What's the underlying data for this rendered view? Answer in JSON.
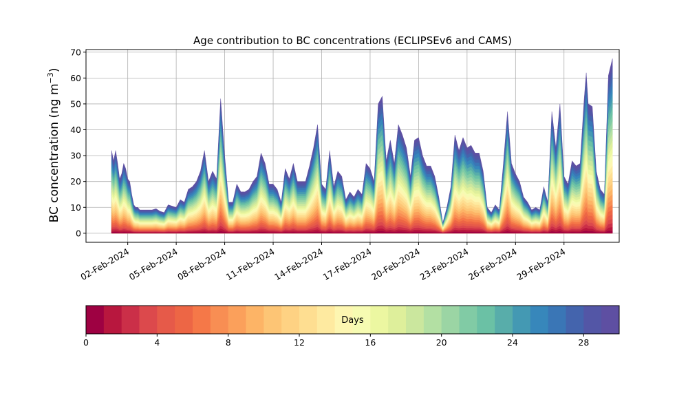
{
  "chart_data": {
    "type": "area",
    "title": "Age contribution to BC concentrations (ECLIPSEv6 and CAMS)",
    "ylabel": "BC concentration (ng m",
    "ylabel_sup": "−3",
    "ylabel_end": ")",
    "xlabel": "",
    "ylim": [
      -3.5,
      71
    ],
    "y_ticks": [
      0,
      10,
      20,
      30,
      40,
      50,
      60,
      70
    ],
    "x_ticks": [
      {
        "date": "2024-02-02",
        "label": "02-Feb-2024"
      },
      {
        "date": "2024-02-05",
        "label": "05-Feb-2024"
      },
      {
        "date": "2024-02-08",
        "label": "08-Feb-2024"
      },
      {
        "date": "2024-02-11",
        "label": "11-Feb-2024"
      },
      {
        "date": "2024-02-14",
        "label": "14-Feb-2024"
      },
      {
        "date": "2024-02-17",
        "label": "17-Feb-2024"
      },
      {
        "date": "2024-02-20",
        "label": "20-Feb-2024"
      },
      {
        "date": "2024-02-23",
        "label": "23-Feb-2024"
      },
      {
        "date": "2024-02-26",
        "label": "26-Feb-2024"
      },
      {
        "date": "2024-02-29",
        "label": "29-Feb-2024"
      }
    ],
    "xlim": [
      "2024-01-30T10:00",
      "2024-03-03T10:00"
    ],
    "grid": true,
    "series_description": "stacked contributions of aerosol age classes 0-30 days",
    "colorbar": {
      "label": "Days",
      "min": 0,
      "max": 30,
      "ticks": [
        0,
        4,
        8,
        12,
        16,
        20,
        24,
        28
      ],
      "colors": [
        "#9e0142",
        "#b8173e",
        "#cb2f48",
        "#dc494c",
        "#e65a49",
        "#ed6645",
        "#f57848",
        "#f88e53",
        "#fba05b",
        "#fdb466",
        "#fdc575",
        "#fed283",
        "#fede91",
        "#feeaa0",
        "#fdf6b1",
        "#f6fbb2",
        "#ecf7a1",
        "#deef9b",
        "#cbe79e",
        "#b3e0a3",
        "#9bd5a4",
        "#81cba5",
        "#6bc1a5",
        "#58adaa",
        "#4499b3",
        "#3787bb",
        "#3a76b6",
        "#4464ad",
        "#5356a6",
        "#5e4fa2"
      ]
    },
    "total_series": [
      [
        "2024-02-01T00:00",
        32
      ],
      [
        "2024-02-01T03:00",
        28
      ],
      [
        "2024-02-01T06:00",
        32
      ],
      [
        "2024-02-01T09:00",
        27
      ],
      [
        "2024-02-01T12:00",
        21
      ],
      [
        "2024-02-01T15:00",
        23
      ],
      [
        "2024-02-01T18:00",
        27
      ],
      [
        "2024-02-01T21:00",
        25
      ],
      [
        "2024-02-02T00:00",
        21
      ],
      [
        "2024-02-02T03:00",
        20
      ],
      [
        "2024-02-02T06:00",
        15
      ],
      [
        "2024-02-02T09:00",
        11
      ],
      [
        "2024-02-02T12:00",
        10
      ],
      [
        "2024-02-02T15:00",
        10
      ],
      [
        "2024-02-02T18:00",
        9
      ],
      [
        "2024-02-02T21:00",
        9
      ],
      [
        "2024-02-03T00:00",
        9
      ],
      [
        "2024-02-03T06:00",
        9
      ],
      [
        "2024-02-03T12:00",
        9
      ],
      [
        "2024-02-03T18:00",
        9.5
      ],
      [
        "2024-02-04T00:00",
        8.5
      ],
      [
        "2024-02-04T06:00",
        8
      ],
      [
        "2024-02-04T12:00",
        11
      ],
      [
        "2024-02-04T18:00",
        10.5
      ],
      [
        "2024-02-05T00:00",
        10
      ],
      [
        "2024-02-05T06:00",
        13
      ],
      [
        "2024-02-05T12:00",
        12
      ],
      [
        "2024-02-05T18:00",
        17
      ],
      [
        "2024-02-06T00:00",
        18
      ],
      [
        "2024-02-06T06:00",
        20
      ],
      [
        "2024-02-06T12:00",
        24
      ],
      [
        "2024-02-06T18:00",
        32
      ],
      [
        "2024-02-07T00:00",
        20
      ],
      [
        "2024-02-07T06:00",
        24
      ],
      [
        "2024-02-07T12:00",
        21
      ],
      [
        "2024-02-07T18:00",
        52
      ],
      [
        "2024-02-08T00:00",
        30
      ],
      [
        "2024-02-08T06:00",
        12
      ],
      [
        "2024-02-08T12:00",
        12
      ],
      [
        "2024-02-08T18:00",
        19
      ],
      [
        "2024-02-09T00:00",
        16
      ],
      [
        "2024-02-09T06:00",
        16
      ],
      [
        "2024-02-09T12:00",
        17
      ],
      [
        "2024-02-09T18:00",
        20
      ],
      [
        "2024-02-10T00:00",
        22
      ],
      [
        "2024-02-10T06:00",
        31
      ],
      [
        "2024-02-10T12:00",
        27
      ],
      [
        "2024-02-10T18:00",
        19
      ],
      [
        "2024-02-11T00:00",
        19
      ],
      [
        "2024-02-11T06:00",
        17
      ],
      [
        "2024-02-11T12:00",
        12
      ],
      [
        "2024-02-11T18:00",
        25
      ],
      [
        "2024-02-12T00:00",
        21
      ],
      [
        "2024-02-12T06:00",
        27
      ],
      [
        "2024-02-12T12:00",
        20
      ],
      [
        "2024-02-12T18:00",
        20
      ],
      [
        "2024-02-13T00:00",
        20
      ],
      [
        "2024-02-13T06:00",
        26
      ],
      [
        "2024-02-13T12:00",
        33
      ],
      [
        "2024-02-13T18:00",
        42
      ],
      [
        "2024-02-14T00:00",
        19
      ],
      [
        "2024-02-14T06:00",
        17
      ],
      [
        "2024-02-14T12:00",
        32
      ],
      [
        "2024-02-14T18:00",
        18
      ],
      [
        "2024-02-15T00:00",
        24
      ],
      [
        "2024-02-15T06:00",
        22
      ],
      [
        "2024-02-15T12:00",
        13
      ],
      [
        "2024-02-15T18:00",
        16
      ],
      [
        "2024-02-16T00:00",
        14
      ],
      [
        "2024-02-16T06:00",
        17
      ],
      [
        "2024-02-16T12:00",
        15
      ],
      [
        "2024-02-16T18:00",
        27
      ],
      [
        "2024-02-17T00:00",
        25
      ],
      [
        "2024-02-17T06:00",
        20
      ],
      [
        "2024-02-17T12:00",
        50
      ],
      [
        "2024-02-17T18:00",
        53
      ],
      [
        "2024-02-18T00:00",
        28
      ],
      [
        "2024-02-18T06:00",
        36
      ],
      [
        "2024-02-18T12:00",
        27
      ],
      [
        "2024-02-18T18:00",
        42
      ],
      [
        "2024-02-19T00:00",
        38
      ],
      [
        "2024-02-19T06:00",
        33
      ],
      [
        "2024-02-19T12:00",
        22
      ],
      [
        "2024-02-19T18:00",
        36
      ],
      [
        "2024-02-20T00:00",
        37
      ],
      [
        "2024-02-20T06:00",
        30
      ],
      [
        "2024-02-20T12:00",
        26
      ],
      [
        "2024-02-20T18:00",
        26
      ],
      [
        "2024-02-21T00:00",
        22
      ],
      [
        "2024-02-21T06:00",
        14
      ],
      [
        "2024-02-21T12:00",
        4
      ],
      [
        "2024-02-21T18:00",
        10
      ],
      [
        "2024-02-22T00:00",
        18
      ],
      [
        "2024-02-22T06:00",
        38
      ],
      [
        "2024-02-22T12:00",
        32
      ],
      [
        "2024-02-22T18:00",
        37
      ],
      [
        "2024-02-23T00:00",
        33
      ],
      [
        "2024-02-23T06:00",
        34
      ],
      [
        "2024-02-23T12:00",
        31
      ],
      [
        "2024-02-23T18:00",
        31
      ],
      [
        "2024-02-24T00:00",
        24
      ],
      [
        "2024-02-24T06:00",
        10
      ],
      [
        "2024-02-24T12:00",
        8
      ],
      [
        "2024-02-24T18:00",
        11
      ],
      [
        "2024-02-25T00:00",
        9
      ],
      [
        "2024-02-25T06:00",
        27
      ],
      [
        "2024-02-25T12:00",
        47
      ],
      [
        "2024-02-25T18:00",
        27
      ],
      [
        "2024-02-26T00:00",
        23
      ],
      [
        "2024-02-26T06:00",
        20
      ],
      [
        "2024-02-26T12:00",
        14
      ],
      [
        "2024-02-26T18:00",
        12
      ],
      [
        "2024-02-27T00:00",
        9
      ],
      [
        "2024-02-27T06:00",
        10
      ],
      [
        "2024-02-27T12:00",
        9
      ],
      [
        "2024-02-27T18:00",
        18
      ],
      [
        "2024-02-28T00:00",
        12
      ],
      [
        "2024-02-28T06:00",
        47
      ],
      [
        "2024-02-28T12:00",
        33
      ],
      [
        "2024-02-28T18:00",
        50
      ],
      [
        "2024-02-29T00:00",
        22
      ],
      [
        "2024-02-29T06:00",
        19
      ],
      [
        "2024-02-29T12:00",
        28
      ],
      [
        "2024-02-29T18:00",
        26
      ],
      [
        "2024-03-01T00:00",
        27
      ],
      [
        "2024-03-01T06:00",
        52
      ],
      [
        "2024-03-01T09:00",
        62
      ],
      [
        "2024-03-01T12:00",
        50
      ],
      [
        "2024-03-01T18:00",
        49
      ],
      [
        "2024-03-02T00:00",
        24
      ],
      [
        "2024-03-02T06:00",
        17
      ],
      [
        "2024-03-02T12:00",
        15
      ],
      [
        "2024-03-02T18:00",
        61
      ],
      [
        "2024-03-03T00:00",
        67.5
      ]
    ]
  }
}
